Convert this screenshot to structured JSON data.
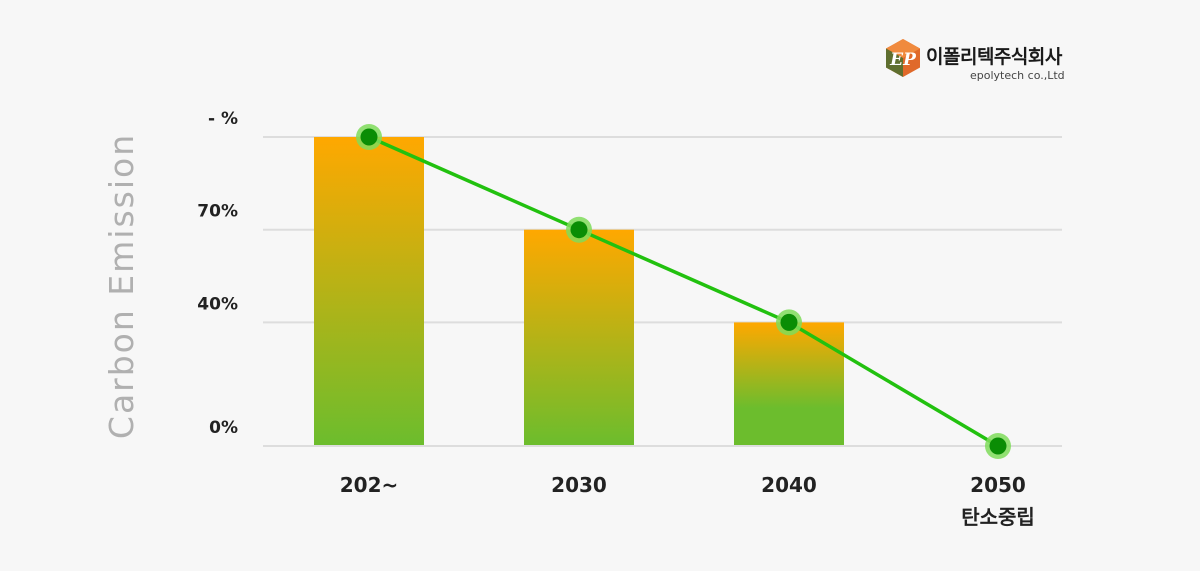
{
  "logo": {
    "mark": "EP",
    "name": "이폴리텍주식회사",
    "subtitle": "epolytech co.,Ltd"
  },
  "chart_data": {
    "type": "bar",
    "ylabel": "Carbon Emission",
    "xlabel": "",
    "categories": [
      "202~",
      "2030",
      "2040",
      "2050"
    ],
    "category_sublabels": [
      "",
      "",
      "",
      "탄소중립"
    ],
    "ytick_labels": [
      "0%",
      "40%",
      "70%",
      "- %"
    ],
    "ytick_values": [
      0,
      40,
      70,
      100
    ],
    "ylim": [
      0,
      100
    ],
    "grid": true,
    "series": [
      {
        "kind": "bar",
        "values": [
          100,
          70,
          40,
          0
        ]
      },
      {
        "kind": "line",
        "values": [
          100,
          70,
          40,
          0
        ]
      }
    ],
    "colors": {
      "bar_top": "#ffa800",
      "bar_bottom": "#6cbd2d",
      "line": "#22c10f",
      "marker": "#0a8d05",
      "marker_halo": "#7fdc5a",
      "grid": "#dddddd",
      "ylabel": "#b0b0b0"
    }
  }
}
